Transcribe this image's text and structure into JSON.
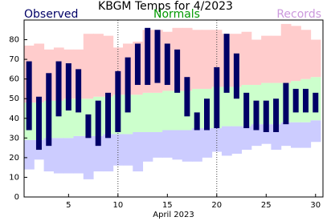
{
  "chart_data": {
    "type": "range",
    "title": "KBGM Temps for 4/2023",
    "x_label": "April 2023",
    "x": [
      1,
      2,
      3,
      4,
      5,
      6,
      7,
      8,
      9,
      10,
      11,
      12,
      13,
      14,
      15,
      16,
      17,
      18,
      19,
      20,
      21,
      22,
      23,
      24,
      25,
      26,
      27,
      28,
      29,
      30
    ],
    "xlim": [
      0.5,
      30.75
    ],
    "xticks": [
      5,
      10,
      15,
      20,
      25,
      30
    ],
    "xgrid": [
      10,
      20
    ],
    "ylim": [
      0,
      90
    ],
    "yticks": [
      0,
      10,
      20,
      30,
      40,
      50,
      60,
      70,
      80
    ],
    "series": [
      {
        "name": "Observed",
        "color": "#000066",
        "high": [
          69,
          51,
          63,
          69,
          68,
          65,
          42,
          49,
          53,
          64,
          71,
          78,
          86,
          85,
          78,
          75,
          61,
          43,
          50,
          66,
          83,
          73,
          53,
          49,
          49,
          50,
          58,
          55,
          55,
          53
        ],
        "low": [
          34,
          24,
          26,
          41,
          44,
          43,
          30,
          26,
          30,
          33,
          43,
          57,
          57,
          58,
          57,
          53,
          41,
          34,
          34,
          35,
          53,
          50,
          35,
          34,
          33,
          33,
          37,
          43,
          43,
          43
        ]
      },
      {
        "name": "Normals",
        "color": "#009900",
        "fill": "#ccffcc",
        "high": [
          48,
          48,
          49,
          49,
          50,
          50,
          50,
          51,
          51,
          52,
          52,
          52,
          53,
          53,
          54,
          54,
          54,
          55,
          55,
          56,
          56,
          56,
          57,
          57,
          58,
          58,
          58,
          59,
          60,
          61
        ],
        "low": [
          29,
          29,
          30,
          30,
          30,
          31,
          31,
          31,
          32,
          32,
          32,
          33,
          33,
          33,
          34,
          34,
          34,
          35,
          35,
          35,
          36,
          36,
          36,
          37,
          37,
          37,
          38,
          38,
          38,
          39
        ]
      },
      {
        "name": "Records",
        "color": "#cc99dd",
        "high_fill": "#ffcccc",
        "low_fill": "#ccccff",
        "high": [
          77,
          78,
          75,
          76,
          75,
          75,
          83,
          83,
          82,
          76,
          78,
          79,
          85,
          85,
          84,
          86,
          86,
          85,
          85,
          85,
          83,
          83,
          84,
          80,
          82,
          82,
          88,
          87,
          85,
          80
        ],
        "low": [
          14,
          19,
          13,
          12,
          12,
          12,
          9,
          13,
          13,
          16,
          16,
          13,
          18,
          20,
          20,
          19,
          18,
          18,
          20,
          23,
          21,
          22,
          24,
          26,
          27,
          24,
          26,
          25,
          25,
          28
        ]
      }
    ]
  }
}
